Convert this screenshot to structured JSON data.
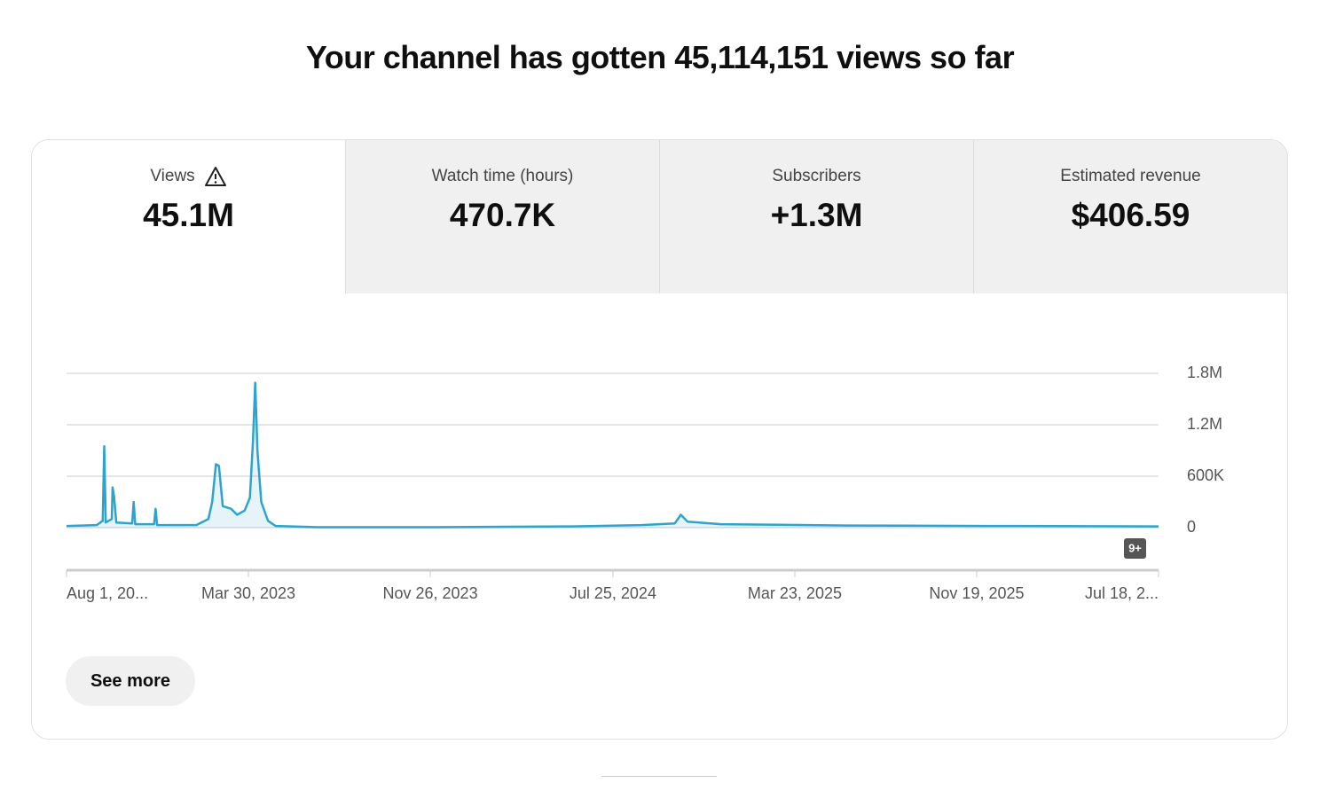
{
  "header": {
    "title": "Your channel has gotten 45,114,151 views so far"
  },
  "tabs": [
    {
      "label": "Views",
      "value": "45.1M"
    },
    {
      "label": "Watch time (hours)",
      "value": "470.7K"
    },
    {
      "label": "Subscribers",
      "value": "+1.3M"
    },
    {
      "label": "Estimated revenue",
      "value": "$406.59"
    }
  ],
  "chart_data": {
    "type": "line",
    "color": "#2ea3cc",
    "grid": true,
    "x": [
      "2022-08-01",
      "2022-09-10",
      "2022-09-18",
      "2022-09-20",
      "2022-09-22",
      "2022-09-30",
      "2022-10-01",
      "2022-10-03",
      "2022-10-06",
      "2022-10-27",
      "2022-10-29",
      "2022-10-31",
      "2022-11-25",
      "2022-11-27",
      "2022-11-29",
      "2023-01-20",
      "2023-02-05",
      "2023-02-10",
      "2023-02-15",
      "2023-02-19",
      "2023-02-24",
      "2023-03-07",
      "2023-03-15",
      "2023-03-25",
      "2023-04-01",
      "2023-04-05",
      "2023-04-08",
      "2023-04-11",
      "2023-04-16",
      "2023-04-25",
      "2023-05-05",
      "2023-07-01",
      "2023-12-01",
      "2024-06-01",
      "2024-09-01",
      "2024-10-15",
      "2024-10-23",
      "2024-11-01",
      "2024-12-15",
      "2025-06-01",
      "2025-12-01",
      "2026-07-18"
    ],
    "values": [
      20000,
      30000,
      80000,
      950000,
      60000,
      100000,
      470000,
      360000,
      60000,
      50000,
      300000,
      40000,
      40000,
      220000,
      30000,
      30000,
      100000,
      300000,
      740000,
      720000,
      250000,
      220000,
      150000,
      200000,
      350000,
      1000000,
      1690000,
      900000,
      300000,
      80000,
      20000,
      5000,
      5000,
      15000,
      30000,
      50000,
      150000,
      70000,
      40000,
      25000,
      20000,
      15000
    ],
    "xlim": [
      "2022-08-01",
      "2026-07-18"
    ],
    "xticks": [
      {
        "value": "2022-08-01",
        "label": "Aug 1, 20..."
      },
      {
        "value": "2023-03-30",
        "label": "Mar 30, 2023"
      },
      {
        "value": "2023-11-26",
        "label": "Nov 26, 2023"
      },
      {
        "value": "2024-07-25",
        "label": "Jul 25, 2024"
      },
      {
        "value": "2025-03-23",
        "label": "Mar 23, 2025"
      },
      {
        "value": "2025-11-19",
        "label": "Nov 19, 2025"
      },
      {
        "value": "2026-07-18",
        "label": "Jul 18, 2..."
      }
    ],
    "ylim": [
      0,
      1800000
    ],
    "yticks": [
      0,
      {
        "value": 600000,
        "label": "600K"
      },
      {
        "value": 1200000,
        "label": "1.2M"
      },
      {
        "value": 1800000,
        "label": "1.8M"
      }
    ]
  },
  "badge": "9+",
  "button": {
    "label": "See more"
  }
}
